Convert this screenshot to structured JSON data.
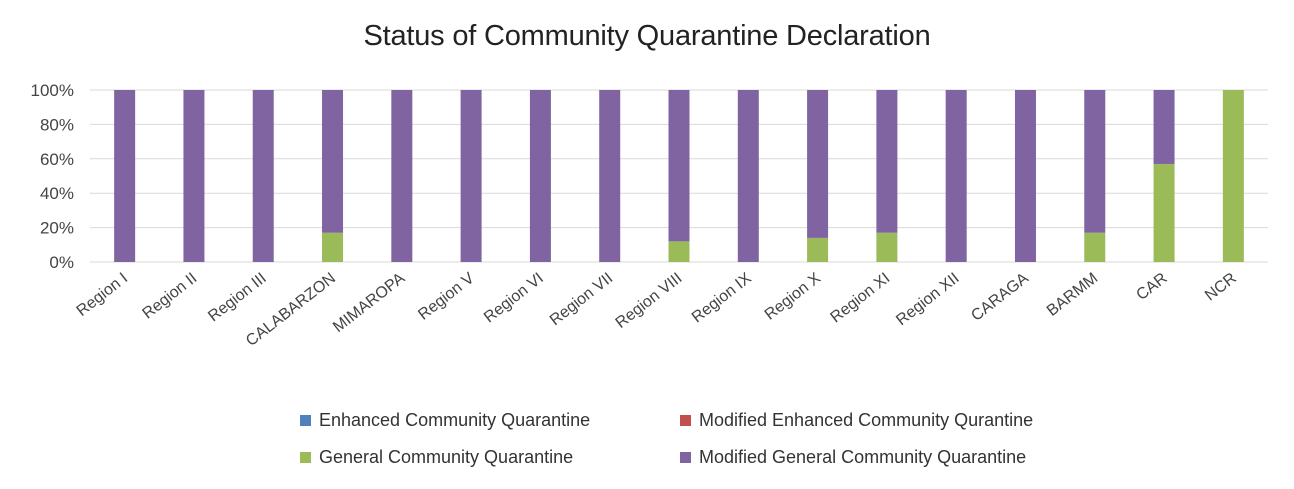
{
  "chart_data": {
    "type": "bar",
    "stacked": true,
    "title": "Status of Community Quarantine Declaration",
    "categories": [
      "Region I",
      "Region II",
      "Region III",
      "CALABARZON",
      "MIMAROPA",
      "Region V",
      "Region VI",
      "Region VII",
      "Region VIII",
      "Region IX",
      "Region X",
      "Region XI",
      "Region XII",
      "CARAGA",
      "BARMM",
      "CAR",
      "NCR"
    ],
    "y_ticks": [
      "0%",
      "20%",
      "40%",
      "60%",
      "80%",
      "100%"
    ],
    "ylim": [
      0,
      100
    ],
    "grid": true,
    "legend_position": "bottom",
    "series": [
      {
        "name": "Enhanced Community Quarantine",
        "color": "#4f81bd",
        "values": [
          0,
          0,
          0,
          0,
          0,
          0,
          0,
          0,
          0,
          0,
          0,
          0,
          0,
          0,
          0,
          0,
          0
        ]
      },
      {
        "name": "Modified Enhanced Community Qurantine",
        "color": "#c0504d",
        "values": [
          0,
          0,
          0,
          0,
          0,
          0,
          0,
          0,
          0,
          0,
          0,
          0,
          0,
          0,
          0,
          0,
          0
        ]
      },
      {
        "name": "General Community Quarantine",
        "color": "#9bbb59",
        "values": [
          0,
          0,
          0,
          17,
          0,
          0,
          0,
          0,
          12,
          0,
          14,
          17,
          0,
          0,
          17,
          57,
          100
        ]
      },
      {
        "name": "Modified General Community Quarantine",
        "color": "#8064a2",
        "values": [
          100,
          100,
          100,
          83,
          100,
          100,
          100,
          100,
          88,
          100,
          86,
          83,
          100,
          100,
          83,
          43,
          0
        ]
      }
    ]
  }
}
